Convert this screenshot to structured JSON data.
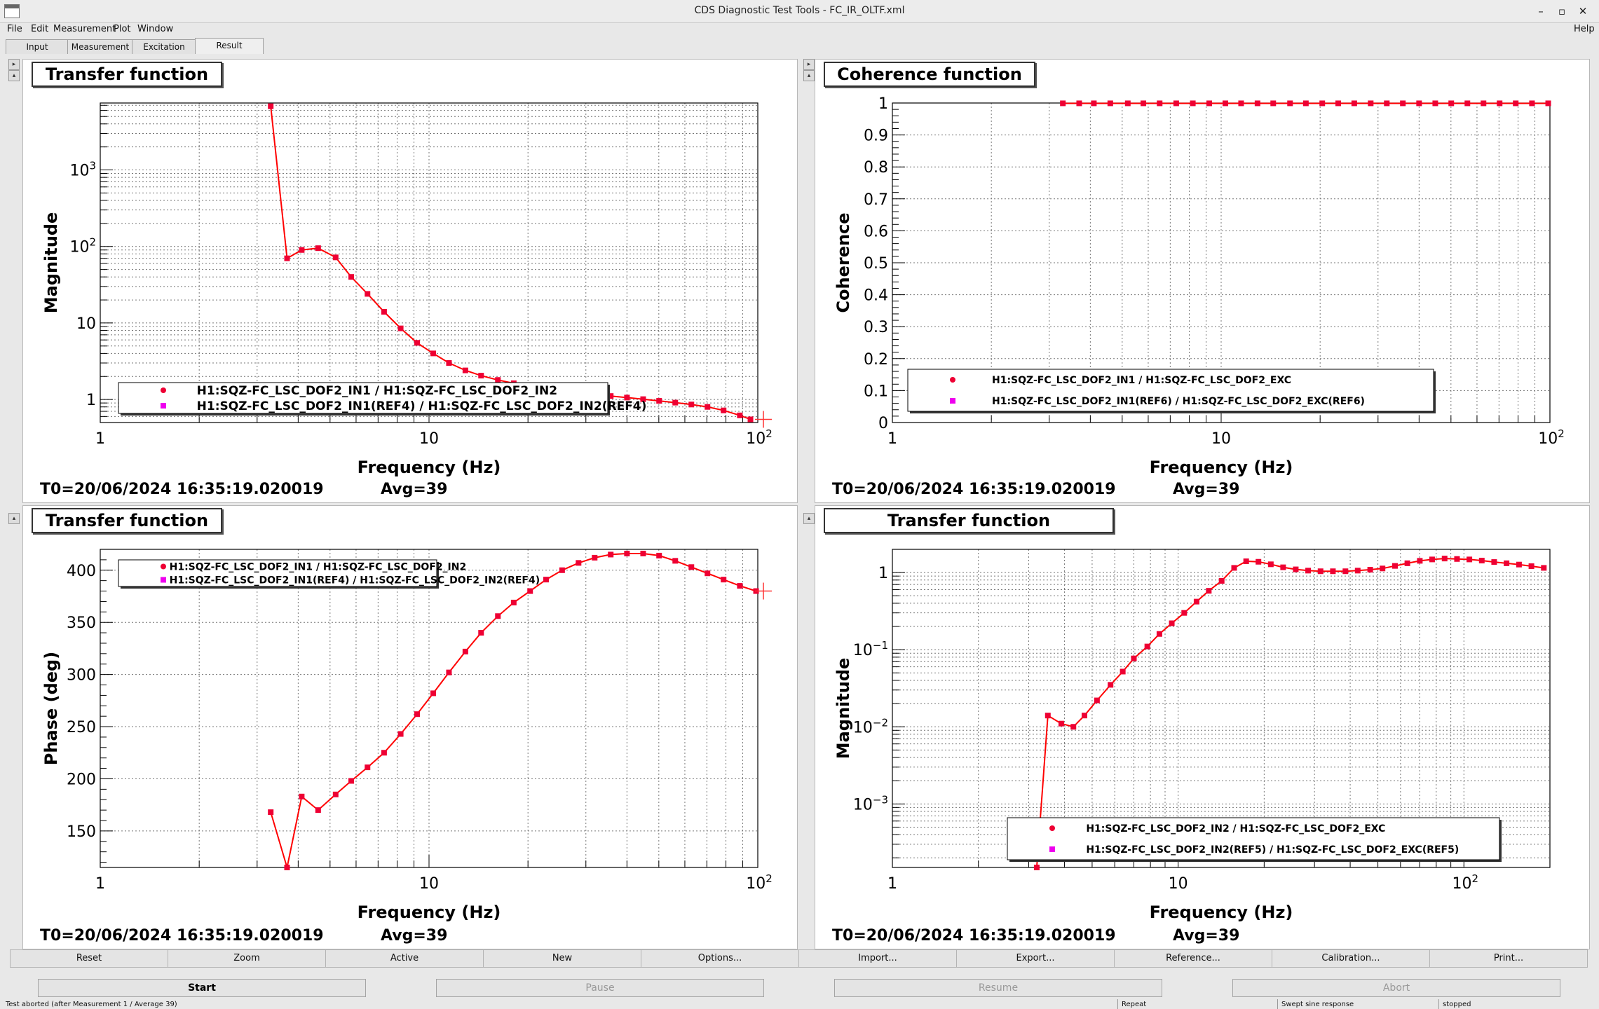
{
  "window": {
    "title": "CDS Diagnostic Test Tools - FC_IR_OLTF.xml",
    "minimize": "–",
    "maximize": "▫",
    "close": "✕"
  },
  "menu": {
    "file": "File",
    "edit": "Edit",
    "measurement": "Measurement",
    "plot": "Plot",
    "window": "Window",
    "help": "Help"
  },
  "tabs": [
    "Input",
    "Measurement",
    "Excitation",
    "Result"
  ],
  "info": {
    "t0": "T0=20/06/2024 16:35:19.020019",
    "avg": "Avg=39"
  },
  "colors": {
    "series": "#ff0000",
    "marker": "#ee0033",
    "ref_marker": "#ee00ee"
  },
  "panels": {
    "tl": {
      "title": "Transfer function",
      "chart_data": {
        "type": "line",
        "xscale": "log",
        "yscale": "log",
        "xlim": [
          1,
          100
        ],
        "ylim": [
          0.5,
          7500
        ],
        "xlabel": "Frequency (Hz)",
        "ylabel": "Magnitude",
        "xticks": [
          {
            "value": 1,
            "label": "1"
          },
          {
            "value": 10,
            "label": "10"
          },
          {
            "value": 100,
            "label": "10",
            "sup": "2"
          }
        ],
        "yticks": [
          {
            "value": 1,
            "label": "1"
          },
          {
            "value": 10,
            "label": "10"
          },
          {
            "value": 100,
            "label": "10",
            "sup": "2"
          },
          {
            "value": 1000,
            "label": "10",
            "sup": "3"
          }
        ],
        "legend": [
          "H1:SQZ-FC_LSC_DOF2_IN1 / H1:SQZ-FC_LSC_DOF2_IN2",
          "H1:SQZ-FC_LSC_DOF2_IN1(REF4) / H1:SQZ-FC_LSC_DOF2_IN2(REF4)"
        ],
        "series": [
          {
            "x": [
              3.3,
              3.7,
              4.1,
              4.6,
              5.2,
              5.8,
              6.5,
              7.3,
              8.2,
              9.2,
              10.3,
              11.5,
              12.9,
              14.4,
              16.2,
              18.1,
              20.3,
              22.7,
              25.4,
              28.5,
              31.9,
              35.7,
              40.0,
              44.8,
              50.1,
              56.1,
              62.8,
              70.3,
              78.7,
              88.2,
              95.0
            ],
            "y": [
              6800,
              70,
              90,
              95,
              72,
              40,
              24,
              14,
              8.5,
              5.5,
              4.0,
              3.0,
              2.4,
              2.05,
              1.8,
              1.63,
              1.5,
              1.4,
              1.32,
              1.24,
              1.17,
              1.11,
              1.06,
              1.01,
              0.96,
              0.91,
              0.86,
              0.8,
              0.72,
              0.62,
              0.55
            ]
          }
        ]
      }
    },
    "tr": {
      "title": "Coherence function",
      "chart_data": {
        "type": "line",
        "xscale": "log",
        "yscale": "linear",
        "xlim": [
          1,
          100
        ],
        "ylim": [
          0,
          1
        ],
        "xlabel": "Frequency (Hz)",
        "ylabel": "Coherence",
        "xticks": [
          {
            "value": 1,
            "label": "1"
          },
          {
            "value": 10,
            "label": "10"
          },
          {
            "value": 100,
            "label": "10",
            "sup": "2"
          }
        ],
        "yticks": [
          {
            "value": 0,
            "label": "0"
          },
          {
            "value": 0.1,
            "label": "0.1"
          },
          {
            "value": 0.2,
            "label": "0.2"
          },
          {
            "value": 0.3,
            "label": "0.3"
          },
          {
            "value": 0.4,
            "label": "0.4"
          },
          {
            "value": 0.5,
            "label": "0.5"
          },
          {
            "value": 0.6,
            "label": "0.6"
          },
          {
            "value": 0.7,
            "label": "0.7"
          },
          {
            "value": 0.8,
            "label": "0.8"
          },
          {
            "value": 0.9,
            "label": "0.9"
          },
          {
            "value": 1,
            "label": "1"
          }
        ],
        "legend": [
          "H1:SQZ-FC_LSC_DOF2_IN1 / H1:SQZ-FC_LSC_DOF2_EXC",
          "H1:SQZ-FC_LSC_DOF2_IN1(REF6) / H1:SQZ-FC_LSC_DOF2_EXC(REF6)"
        ],
        "series": [
          {
            "x": [
              3.3,
              3.7,
              4.1,
              4.6,
              5.2,
              5.8,
              6.5,
              7.3,
              8.2,
              9.2,
              10.3,
              11.5,
              12.9,
              14.4,
              16.2,
              18.1,
              20.3,
              22.7,
              25.4,
              28.5,
              31.9,
              35.7,
              40.0,
              44.8,
              50.1,
              56.1,
              62.8,
              70.3,
              78.7,
              88.2,
              98.8
            ],
            "y": [
              0.999,
              0.999,
              0.999,
              0.999,
              0.999,
              0.999,
              0.999,
              0.999,
              0.999,
              0.999,
              0.999,
              0.999,
              0.999,
              0.999,
              0.999,
              0.999,
              0.999,
              0.999,
              0.999,
              0.999,
              0.999,
              0.999,
              0.999,
              0.999,
              0.999,
              0.999,
              0.999,
              0.999,
              0.999,
              0.999,
              0.999
            ]
          }
        ]
      }
    },
    "bl": {
      "title": "Transfer function",
      "chart_data": {
        "type": "line",
        "xscale": "log",
        "yscale": "linear",
        "xlim": [
          1,
          100
        ],
        "ylim": [
          115,
          420
        ],
        "xlabel": "Frequency (Hz)",
        "ylabel": "Phase (deg)",
        "xticks": [
          {
            "value": 1,
            "label": "1"
          },
          {
            "value": 10,
            "label": "10"
          },
          {
            "value": 100,
            "label": "10",
            "sup": "2"
          }
        ],
        "yticks": [
          {
            "value": 150,
            "label": "150"
          },
          {
            "value": 200,
            "label": "200"
          },
          {
            "value": 250,
            "label": "250"
          },
          {
            "value": 300,
            "label": "300"
          },
          {
            "value": 350,
            "label": "350"
          },
          {
            "value": 400,
            "label": "400"
          }
        ],
        "legend": [
          "H1:SQZ-FC_LSC_DOF2_IN1 / H1:SQZ-FC_LSC_DOF2_IN2",
          "H1:SQZ-FC_LSC_DOF2_IN1(REF4) / H1:SQZ-FC_LSC_DOF2_IN2(REF4)"
        ],
        "series": [
          {
            "x": [
              3.3,
              3.7,
              4.1,
              4.6,
              5.2,
              5.8,
              6.5,
              7.3,
              8.2,
              9.2,
              10.3,
              11.5,
              12.9,
              14.4,
              16.2,
              18.1,
              20.3,
              22.7,
              25.4,
              28.5,
              31.9,
              35.7,
              40.0,
              44.8,
              50.1,
              56.1,
              62.8,
              70.3,
              78.7,
              88.2,
              98.8
            ],
            "y": [
              168,
              115,
              183,
              170,
              185,
              198,
              211,
              225,
              243,
              262,
              282,
              302,
              322,
              340,
              356,
              369,
              380,
              391,
              400,
              407,
              412,
              415,
              416,
              416,
              414,
              409,
              403,
              397,
              391,
              385,
              380
            ]
          }
        ]
      }
    },
    "br": {
      "title": "Transfer function",
      "chart_data": {
        "type": "line",
        "xscale": "log",
        "yscale": "log",
        "xlim": [
          1,
          200
        ],
        "ylim": [
          0.00015,
          2
        ],
        "xlabel": "Frequency (Hz)",
        "ylabel": "Magnitude",
        "xticks": [
          {
            "value": 1,
            "label": "1"
          },
          {
            "value": 10,
            "label": "10"
          },
          {
            "value": 100,
            "label": "10",
            "sup": "2"
          }
        ],
        "yticks": [
          {
            "value": 0.001,
            "label": "10",
            "sup": "−3"
          },
          {
            "value": 0.01,
            "label": "10",
            "sup": "−2"
          },
          {
            "value": 0.1,
            "label": "10",
            "sup": "−1"
          },
          {
            "value": 1,
            "label": "1"
          }
        ],
        "legend": [
          "H1:SQZ-FC_LSC_DOF2_IN2 / H1:SQZ-FC_LSC_DOF2_EXC",
          "H1:SQZ-FC_LSC_DOF2_IN2(REF5) / H1:SQZ-FC_LSC_DOF2_EXC(REF5)"
        ],
        "series": [
          {
            "x": [
              3.2,
              3.5,
              3.9,
              4.3,
              4.7,
              5.2,
              5.8,
              6.4,
              7.0,
              7.8,
              8.6,
              9.5,
              10.5,
              11.6,
              12.8,
              14.2,
              15.7,
              17.3,
              19.1,
              21.1,
              23.3,
              25.8,
              28.5,
              31.5,
              34.8,
              38.5,
              42.5,
              47.0,
              51.9,
              57.4,
              63.4,
              70.1,
              77.4,
              85.6,
              94.6,
              104.5,
              115.5,
              127.6,
              141.0,
              155.9,
              172.3,
              190.4
            ],
            "y": [
              0.00015,
              0.014,
              0.011,
              0.01,
              0.014,
              0.022,
              0.035,
              0.052,
              0.077,
              0.11,
              0.16,
              0.22,
              0.3,
              0.42,
              0.58,
              0.78,
              1.15,
              1.4,
              1.38,
              1.28,
              1.17,
              1.1,
              1.06,
              1.04,
              1.04,
              1.04,
              1.06,
              1.09,
              1.13,
              1.22,
              1.32,
              1.42,
              1.48,
              1.52,
              1.5,
              1.48,
              1.43,
              1.37,
              1.32,
              1.27,
              1.21,
              1.15
            ]
          }
        ]
      }
    }
  },
  "buttons1": [
    "Reset",
    "Zoom",
    "Active",
    "New",
    "Options...",
    "Import...",
    "Export...",
    "Reference...",
    "Calibration...",
    "Print..."
  ],
  "buttons2": {
    "start": "Start",
    "pause": "Pause",
    "resume": "Resume",
    "abort": "Abort"
  },
  "status": {
    "message": "Test aborted (after Measurement 1 / Average 39)",
    "mode": "Repeat",
    "type": "Swept sine response",
    "state": "stopped"
  }
}
